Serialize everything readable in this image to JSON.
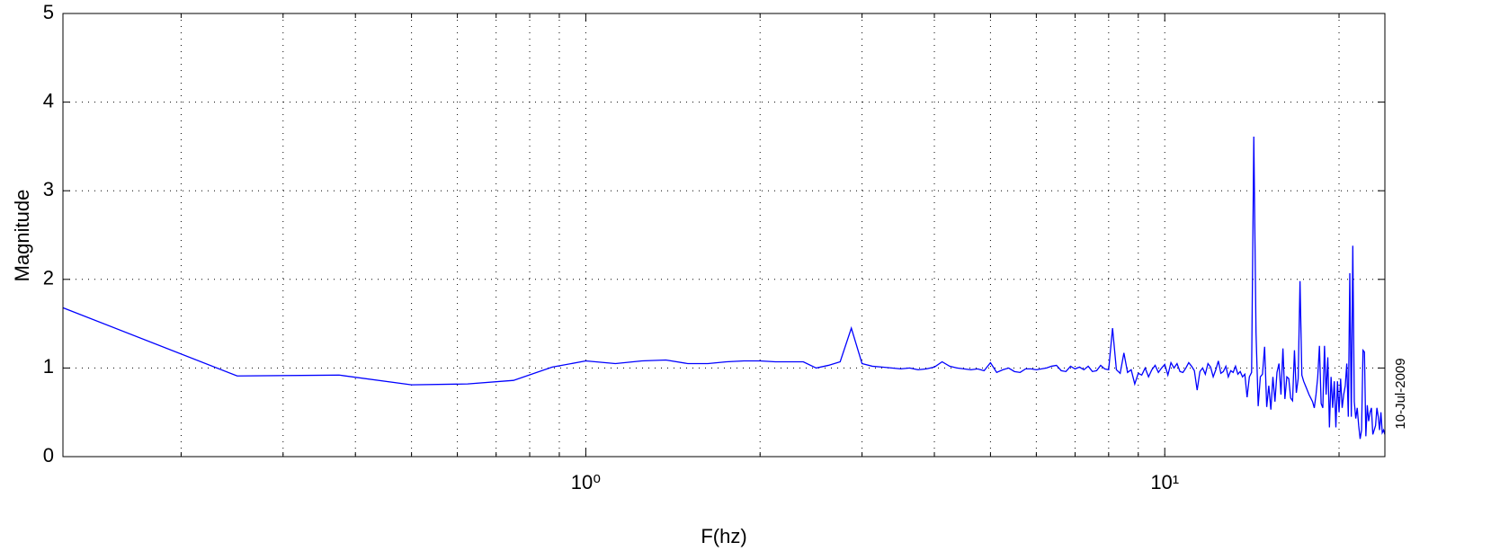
{
  "chart_data": {
    "type": "line",
    "x_label": "F(hz)",
    "y_label": "Magnitude",
    "date_stamp": "10-Jul-2009",
    "x_scale": "log",
    "grid": true,
    "xlim": [
      0.125,
      24
    ],
    "ylim": [
      0,
      5
    ],
    "xticks": [
      {
        "value": 1,
        "label": "10⁰"
      },
      {
        "value": 10,
        "label": "10¹"
      }
    ],
    "xminorticks": [
      0.2,
      0.3,
      0.4,
      0.5,
      0.6,
      0.7,
      0.8,
      0.9,
      2,
      3,
      4,
      5,
      6,
      7,
      8,
      9,
      20
    ],
    "yticks": [
      0,
      1,
      2,
      3,
      4,
      5
    ],
    "x": [
      0.125,
      0.25,
      0.375,
      0.5,
      0.625,
      0.75,
      0.875,
      1,
      1.125,
      1.25,
      1.375,
      1.5,
      1.625,
      1.75,
      1.875,
      2,
      2.125,
      2.25,
      2.375,
      2.5,
      2.625,
      2.75,
      2.875,
      3,
      3.125,
      3.25,
      3.375,
      3.5,
      3.625,
      3.75,
      3.875,
      4,
      4.125,
      4.25,
      4.375,
      4.5,
      4.625,
      4.75,
      4.875,
      5,
      5.125,
      5.25,
      5.375,
      5.5,
      5.625,
      5.75,
      5.875,
      6,
      6.125,
      6.25,
      6.375,
      6.5,
      6.625,
      6.75,
      6.875,
      7,
      7.125,
      7.25,
      7.375,
      7.5,
      7.625,
      7.75,
      7.875,
      8,
      8.125,
      8.25,
      8.375,
      8.5,
      8.625,
      8.75,
      8.875,
      9,
      9.125,
      9.25,
      9.375,
      9.5,
      9.625,
      9.75,
      9.875,
      10,
      10.125,
      10.25,
      10.375,
      10.5,
      10.625,
      10.75,
      10.875,
      11,
      11.125,
      11.25,
      11.375,
      11.5,
      11.625,
      11.75,
      11.875,
      12,
      12.125,
      12.25,
      12.375,
      12.5,
      12.625,
      12.75,
      12.875,
      13,
      13.125,
      13.25,
      13.375,
      13.5,
      13.625,
      13.75,
      13.875,
      14,
      14.125,
      14.25,
      14.375,
      14.5,
      14.625,
      14.75,
      14.875,
      15,
      15.125,
      15.25,
      15.375,
      15.5,
      15.625,
      15.75,
      15.875,
      16,
      16.125,
      16.25,
      16.375,
      16.5,
      16.625,
      16.75,
      16.875,
      17,
      17.125,
      17.25,
      17.375,
      17.5,
      17.625,
      17.75,
      17.875,
      18,
      18.125,
      18.25,
      18.375,
      18.5,
      18.625,
      18.75,
      18.875,
      19,
      19.125,
      19.25,
      19.375,
      19.5,
      19.625,
      19.75,
      19.875,
      20,
      20.125,
      20.25,
      20.375,
      20.5,
      20.625,
      20.75,
      20.875,
      21,
      21.125,
      21.25,
      21.375,
      21.5,
      21.625,
      21.75,
      21.875,
      22,
      22.125,
      22.25,
      22.375,
      22.5,
      22.625,
      22.75,
      22.875,
      23,
      23.125,
      23.25,
      23.375,
      23.5,
      23.625,
      23.75,
      23.875,
      24
    ],
    "series": [
      {
        "name": "Magnitude",
        "color": "#0000ff",
        "values": [
          1.68,
          0.91,
          0.92,
          0.81,
          0.82,
          0.86,
          1.01,
          1.08,
          1.05,
          1.08,
          1.09,
          1.05,
          1.05,
          1.07,
          1.08,
          1.08,
          1.07,
          1.07,
          1.07,
          1.0,
          1.03,
          1.07,
          1.45,
          1.05,
          1.02,
          1.01,
          1.0,
          0.99,
          1.0,
          0.98,
          0.99,
          1.01,
          1.07,
          1.02,
          1.0,
          0.99,
          0.98,
          0.99,
          0.97,
          1.06,
          0.95,
          0.98,
          1.0,
          0.96,
          0.95,
          0.99,
          0.99,
          0.98,
          0.99,
          1.0,
          1.02,
          1.03,
          0.97,
          0.96,
          1.02,
          0.99,
          1.01,
          0.98,
          1.02,
          0.96,
          0.97,
          1.03,
          0.99,
          0.98,
          1.45,
          0.98,
          0.94,
          1.17,
          0.95,
          0.98,
          0.82,
          0.94,
          0.92,
          1.0,
          0.9,
          0.98,
          1.03,
          0.95,
          1.0,
          1.04,
          0.92,
          1.06,
          1.0,
          1.05,
          0.96,
          0.95,
          1.0,
          1.06,
          1.02,
          0.97,
          0.75,
          0.96,
          1.0,
          0.93,
          1.05,
          1.01,
          0.9,
          0.98,
          1.08,
          0.94,
          0.96,
          1.02,
          0.9,
          0.97,
          0.95,
          1.02,
          0.93,
          0.96,
          0.9,
          0.93,
          0.67,
          0.9,
          0.95,
          3.61,
          1.4,
          0.57,
          0.9,
          0.93,
          1.24,
          0.56,
          0.8,
          0.53,
          0.9,
          0.62,
          0.95,
          1.05,
          0.7,
          1.22,
          0.65,
          0.9,
          0.88,
          0.66,
          0.63,
          1.2,
          0.72,
          0.88,
          1.98,
          0.92,
          0.85,
          0.8,
          0.75,
          0.7,
          0.66,
          0.62,
          0.55,
          0.7,
          0.9,
          1.25,
          0.6,
          0.55,
          1.25,
          0.7,
          1.12,
          0.33,
          0.9,
          0.55,
          0.85,
          0.33,
          0.85,
          0.5,
          0.88,
          0.55,
          0.7,
          0.8,
          1.05,
          0.45,
          2.07,
          0.45,
          2.38,
          0.62,
          0.43,
          0.55,
          0.35,
          0.2,
          0.3,
          1.2,
          1.18,
          0.23,
          0.58,
          0.4,
          0.5,
          0.55,
          0.25,
          0.3,
          0.35,
          0.55,
          0.45,
          0.3,
          0.5,
          0.27,
          0.3,
          0.25
        ]
      }
    ]
  }
}
